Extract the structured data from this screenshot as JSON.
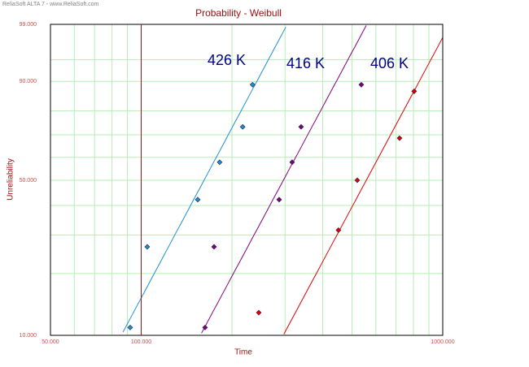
{
  "header": "ReliaSoft ALTA 7 - www.ReliaSoft.com",
  "chart_data": {
    "type": "weibull-probability",
    "title": "Probability - Weibull",
    "x_label": "Time",
    "y_label": "Unreliability",
    "x_log": true,
    "xlim": [
      50,
      1000
    ],
    "xticks": [
      {
        "value": 50,
        "label": "50.000"
      },
      {
        "value": 100,
        "label": "100.000"
      },
      {
        "value": 1000,
        "label": "1000.000"
      }
    ],
    "x_minor_grid": [
      60,
      70,
      80,
      90,
      200,
      300,
      400,
      500,
      600,
      700,
      800,
      900
    ],
    "ylim": [
      10,
      99
    ],
    "yticks": [
      {
        "value": 10,
        "label": "10.000"
      },
      {
        "value": 50,
        "label": "50.000"
      },
      {
        "value": 90,
        "label": "90.000"
      },
      {
        "value": 99,
        "label": "99.000"
      }
    ],
    "y_minor_grid": [
      20,
      30,
      40,
      60,
      70,
      80,
      95
    ],
    "grid": true,
    "grid_color": "#b8ecb8",
    "reference_line": {
      "x": 100,
      "color": "#a01010"
    },
    "series": [
      {
        "name": "426 K",
        "color": "#1e8fd0",
        "x": [
          91.9,
          104.7,
          154,
          182,
          217,
          234
        ],
        "values": [
          10.94,
          26.56,
          42.19,
          57.81,
          73.44,
          89.06
        ],
        "fit": {
          "beta": 2.98,
          "eta": 182.7
        }
      },
      {
        "name": "416 K",
        "color": "#800080",
        "x": [
          162.8,
          174.4,
          286.7,
          316.6,
          339,
          537
        ],
        "values": [
          10.94,
          26.56,
          42.19,
          57.81,
          73.44,
          89.06
        ],
        "fit": {
          "beta": 2.97,
          "eta": 335
        }
      },
      {
        "name": "406 K",
        "color": "#e00000",
        "x": [
          245.4,
          451,
          520.6,
          719,
          804
        ],
        "values": [
          12.96,
          31.48,
          50,
          68.52,
          87.04
        ],
        "fit": {
          "beta": 2.97,
          "eta": 631
        }
      }
    ],
    "series_label_color": "#000080"
  }
}
